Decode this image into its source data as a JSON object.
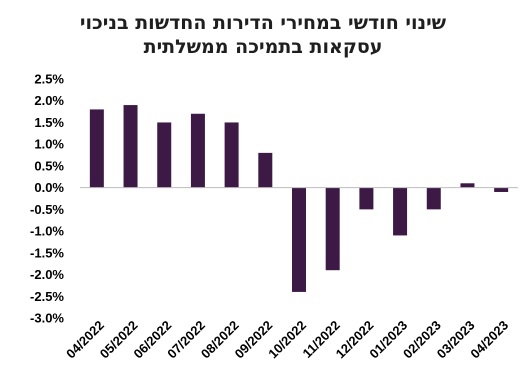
{
  "chart_data": {
    "type": "bar",
    "title": "שינוי חודשי במחירי הדירות החדשות בניכוי",
    "subtitle": "עסקאות בתמיכה ממשלתית",
    "categories": [
      "04/2022",
      "05/2022",
      "06/2022",
      "07/2022",
      "08/2022",
      "09/2022",
      "10/2022",
      "11/2022",
      "12/2022",
      "01/2023",
      "02/2023",
      "03/2023",
      "04/2023"
    ],
    "values": [
      1.8,
      1.9,
      1.5,
      1.7,
      1.5,
      0.8,
      -2.4,
      -1.9,
      -0.5,
      -1.1,
      -0.5,
      0.1,
      -0.1
    ],
    "unit": "%",
    "ylim": [
      -3.0,
      2.5
    ],
    "yticks": [
      "2.5%",
      "2.0%",
      "1.5%",
      "1.0%",
      "0.5%",
      "0.0%",
      "-0.5%",
      "-1.0%",
      "-1.5%",
      "-2.0%",
      "-2.5%",
      "-3.0%"
    ],
    "grid": false,
    "legend": "none",
    "bar_color": "#3d1a45"
  }
}
